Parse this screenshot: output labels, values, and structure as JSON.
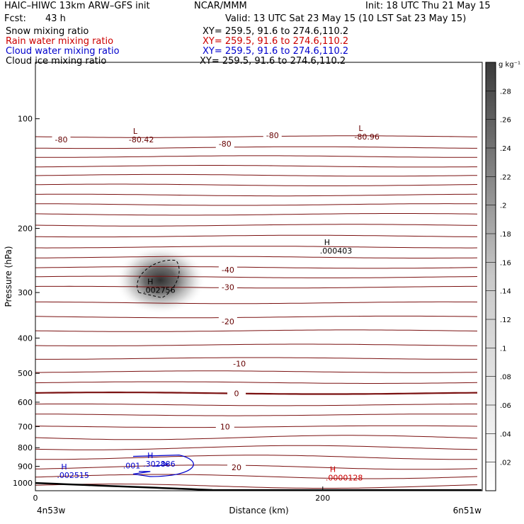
{
  "header": {
    "model": "HAIC–HIWC 13km ARW–GFS init",
    "org": "NCAR/MMM",
    "init": "Init: 18 UTC Thu 21 May 15",
    "fcst_label": "Fcst:",
    "fcst_value": "43 h",
    "valid": "Valid: 13 UTC Sat 23 May 15 (10 LST Sat 23 May 15)"
  },
  "fields": [
    {
      "name": "Snow mixing ratio",
      "xy": "XY= 259.5, 91.6 to 274.6,110.2",
      "color": "#000000"
    },
    {
      "name": "Rain water mixing ratio",
      "xy": "XY= 259.5, 91.6 to 274.6,110.2",
      "color": "#cc0000"
    },
    {
      "name": "Cloud water mixing ratio",
      "xy": "XY= 259.5, 91.6 to 274.6,110.2",
      "color": "#0000cc"
    },
    {
      "name": "Cloud ice mixing ratio",
      "xy": "XY= 259.5, 91.6 to 274.6,110.2",
      "color": "#000000"
    }
  ],
  "chart_data": {
    "type": "cross-section contour",
    "xlabel": "Distance (km)",
    "ylabel": "Pressure (hPa)",
    "x_range": [
      0,
      311
    ],
    "y_range": [
      1050,
      70
    ],
    "y_scale": "log",
    "x_ticks": [
      0,
      200
    ],
    "y_ticks": [
      100,
      200,
      300,
      400,
      500,
      600,
      700,
      800,
      900,
      1000
    ],
    "endpoints": {
      "left": "4n53w",
      "right": "6n51w"
    },
    "colorbar": {
      "unit": "g kg⁻¹",
      "ticks": [
        ".02",
        ".04",
        ".06",
        ".08",
        ".1",
        ".12",
        ".14",
        ".16",
        ".18",
        ".2",
        ".22",
        ".24",
        ".26",
        ".28"
      ],
      "min": 0,
      "max": 0.3
    },
    "temperature_labels": [
      {
        "value": "-80",
        "x": 18,
        "p": 114
      },
      {
        "value": "-80",
        "x": 132,
        "p": 117
      },
      {
        "value": "-80",
        "x": 165,
        "p": 111
      },
      {
        "value": "-40",
        "x": 134,
        "p": 260
      },
      {
        "value": "-30",
        "x": 134,
        "p": 290
      },
      {
        "value": "-20",
        "x": 134,
        "p": 360
      },
      {
        "value": "-10",
        "x": 142,
        "p": 470
      },
      {
        "value": "0",
        "x": 140,
        "p": 567
      },
      {
        "value": "10",
        "x": 132,
        "p": 700
      },
      {
        "value": "20",
        "x": 140,
        "p": 905
      }
    ],
    "extrema": [
      {
        "type": "L",
        "value": "-80.42",
        "x": 65,
        "p": 112,
        "color": "#660000"
      },
      {
        "type": "L",
        "value": "-80.96",
        "x": 222,
        "p": 110,
        "color": "#660000"
      },
      {
        "type": "H",
        "value": ".000403",
        "x": 198,
        "p": 226,
        "color": "#000000"
      },
      {
        "type": "H",
        "value": ".002756",
        "x": 75,
        "p": 290,
        "color": "#000000"
      },
      {
        "type": "H",
        "value": ".302886",
        "x": 75,
        "p": 870,
        "color": "#0000cc"
      },
      {
        "type": "H",
        "value": ".002515",
        "x": 15,
        "p": 935,
        "color": "#0000cc"
      },
      {
        "type": "H",
        "value": ".0000128",
        "x": 202,
        "p": 950,
        "color": "#cc0000"
      }
    ],
    "cloud_water_contour_label": ".001",
    "snow_max": {
      "x": 90,
      "p": 290,
      "value": 0.3
    },
    "terrain_pressure": 1000
  }
}
